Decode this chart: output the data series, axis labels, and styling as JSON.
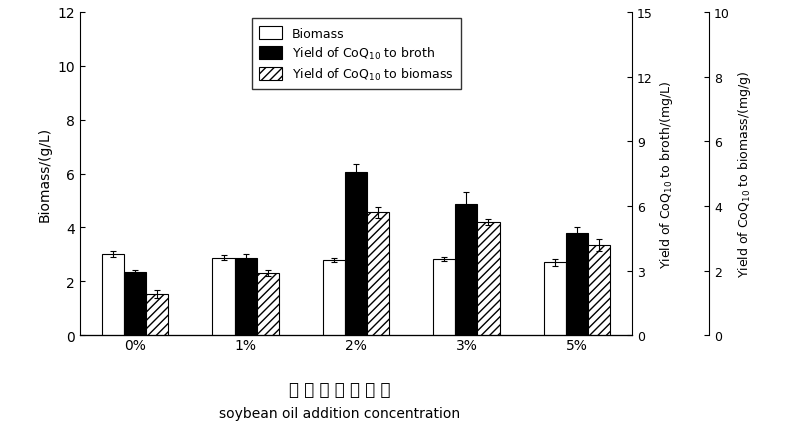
{
  "categories": [
    "0%",
    "1%",
    "2%",
    "3%",
    "5%"
  ],
  "biomass": [
    3.02,
    2.88,
    2.78,
    2.83,
    2.7
  ],
  "biomass_err": [
    0.12,
    0.1,
    0.08,
    0.08,
    0.12
  ],
  "yield_broth": [
    2.92,
    3.58,
    7.58,
    6.1,
    4.75
  ],
  "yield_broth_err": [
    0.12,
    0.2,
    0.38,
    0.55,
    0.28
  ],
  "yield_biomass": [
    1.28,
    1.93,
    3.8,
    3.5,
    2.78
  ],
  "yield_biomass_err": [
    0.13,
    0.1,
    0.18,
    0.1,
    0.18
  ],
  "left_ylim": [
    0,
    12
  ],
  "left_yticks": [
    0,
    2,
    4,
    6,
    8,
    10,
    12
  ],
  "mid_ylim": [
    0,
    15
  ],
  "mid_yticks": [
    0,
    3,
    6,
    9,
    12,
    15
  ],
  "right_ylim": [
    0,
    10
  ],
  "right_yticks": [
    0,
    2,
    4,
    6,
    8,
    10
  ],
  "ylabel_left": "Biomass/(g/L)",
  "ylabel_mid": "Yield of CoQ$_{10}$ to broth/(mg/L)",
  "ylabel_right": "Yield of CoQ$_{10}$ to biomass/(mg/g)",
  "xlabel_chinese": "大 豆 油 添 加 浓 度",
  "xlabel_english": "soybean oil addition concentration",
  "legend_labels": [
    "Biomass",
    "Yield of CoQ$_{10}$ to broth",
    "Yield of CoQ$_{10}$ to biomass"
  ],
  "bar_width": 0.2,
  "fig_width": 8.0,
  "fig_height": 4.31
}
